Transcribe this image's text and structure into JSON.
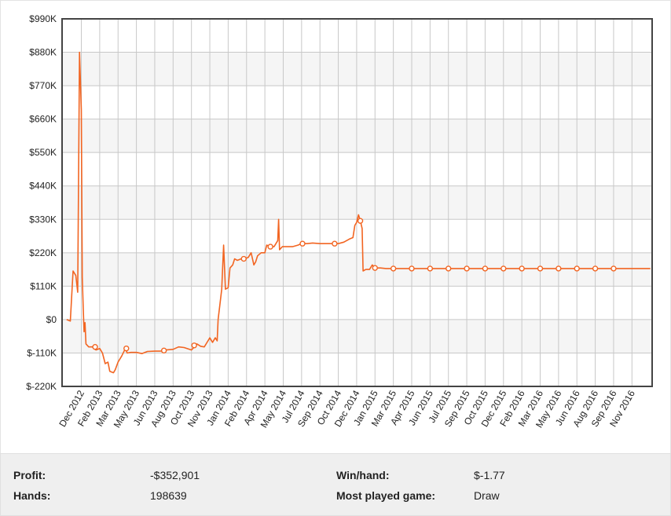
{
  "chart_data": {
    "type": "line",
    "title": "",
    "xlabel": "",
    "ylabel": "",
    "ylim": [
      -220000,
      990000
    ],
    "yticks": [
      -220000,
      -110000,
      0,
      110000,
      220000,
      330000,
      440000,
      550000,
      660000,
      770000,
      880000,
      990000
    ],
    "ytick_labels": [
      "$-220K",
      "$-110K",
      "$0",
      "$110K",
      "$220K",
      "$330K",
      "$440K",
      "$550K",
      "$660K",
      "$770K",
      "$880K",
      "$990K"
    ],
    "xtick_labels": [
      "Dec 2012",
      "Feb 2013",
      "Mar 2013",
      "May 2013",
      "Jun 2013",
      "Aug 2013",
      "Oct 2013",
      "Nov 2013",
      "Jan 2014",
      "Feb 2014",
      "Apr 2014",
      "May 2014",
      "Jul 2014",
      "Sep 2014",
      "Oct 2014",
      "Dec 2014",
      "Jan 2015",
      "Mar 2015",
      "Apr 2015",
      "Jun 2015",
      "Jul 2015",
      "Sep 2015",
      "Oct 2015",
      "Dec 2015",
      "Feb 2016",
      "Mar 2016",
      "May 2016",
      "Jun 2016",
      "Aug 2016",
      "Sep 2016",
      "Nov 2016"
    ],
    "grid": true,
    "legend": "none",
    "line_color": "#f26522",
    "series": [
      {
        "points": [
          [
            -0.8,
            0
          ],
          [
            -0.6,
            -5000
          ],
          [
            -0.45,
            160000
          ],
          [
            -0.3,
            145000
          ],
          [
            -0.2,
            90000
          ],
          [
            -0.1,
            880000
          ],
          [
            0.0,
            690000
          ],
          [
            0.05,
            140000
          ],
          [
            0.1,
            40000
          ],
          [
            0.15,
            -40000
          ],
          [
            0.2,
            -10000
          ],
          [
            0.25,
            -80000
          ],
          [
            0.4,
            -90000
          ],
          [
            0.6,
            -90000
          ],
          [
            0.8,
            -100000
          ],
          [
            1.0,
            -95000
          ],
          [
            1.15,
            -110000
          ],
          [
            1.3,
            -145000
          ],
          [
            1.45,
            -140000
          ],
          [
            1.55,
            -170000
          ],
          [
            1.75,
            -175000
          ],
          [
            1.85,
            -165000
          ],
          [
            2.0,
            -140000
          ],
          [
            2.2,
            -120000
          ],
          [
            2.4,
            -95000
          ],
          [
            2.5,
            -110000
          ],
          [
            2.7,
            -108000
          ],
          [
            3.0,
            -108000
          ],
          [
            3.3,
            -112000
          ],
          [
            3.6,
            -105000
          ],
          [
            4.0,
            -104000
          ],
          [
            4.3,
            -104000
          ],
          [
            4.6,
            -100000
          ],
          [
            5.0,
            -98000
          ],
          [
            5.3,
            -90000
          ],
          [
            5.6,
            -92000
          ],
          [
            6.0,
            -100000
          ],
          [
            6.3,
            -80000
          ],
          [
            6.5,
            -88000
          ],
          [
            6.7,
            -90000
          ],
          [
            6.9,
            -70000
          ],
          [
            7.0,
            -60000
          ],
          [
            7.15,
            -75000
          ],
          [
            7.3,
            -60000
          ],
          [
            7.4,
            -70000
          ],
          [
            7.45,
            0
          ],
          [
            7.55,
            50000
          ],
          [
            7.65,
            100000
          ],
          [
            7.75,
            245000
          ],
          [
            7.85,
            100000
          ],
          [
            8.0,
            105000
          ],
          [
            8.1,
            170000
          ],
          [
            8.25,
            180000
          ],
          [
            8.35,
            200000
          ],
          [
            8.5,
            195000
          ],
          [
            8.7,
            200000
          ],
          [
            8.9,
            200000
          ],
          [
            9.1,
            205000
          ],
          [
            9.25,
            220000
          ],
          [
            9.4,
            180000
          ],
          [
            9.5,
            190000
          ],
          [
            9.6,
            210000
          ],
          [
            9.8,
            220000
          ],
          [
            10.0,
            220000
          ],
          [
            10.1,
            245000
          ],
          [
            10.3,
            240000
          ],
          [
            10.5,
            240000
          ],
          [
            10.7,
            260000
          ],
          [
            10.75,
            330000
          ],
          [
            10.8,
            230000
          ],
          [
            10.95,
            240000
          ],
          [
            11.2,
            240000
          ],
          [
            11.5,
            240000
          ],
          [
            11.8,
            245000
          ],
          [
            12.0,
            250000
          ],
          [
            12.3,
            250000
          ],
          [
            12.6,
            252000
          ],
          [
            13.0,
            250000
          ],
          [
            13.3,
            250000
          ],
          [
            13.6,
            250000
          ],
          [
            14.0,
            250000
          ],
          [
            14.3,
            255000
          ],
          [
            14.6,
            265000
          ],
          [
            14.8,
            270000
          ],
          [
            14.9,
            310000
          ],
          [
            15.0,
            320000
          ],
          [
            15.1,
            345000
          ],
          [
            15.2,
            325000
          ],
          [
            15.3,
            300000
          ],
          [
            15.35,
            160000
          ],
          [
            15.5,
            165000
          ],
          [
            15.7,
            165000
          ],
          [
            15.85,
            180000
          ],
          [
            16.0,
            170000
          ],
          [
            16.3,
            170000
          ],
          [
            16.6,
            168000
          ],
          [
            17.0,
            168000
          ],
          [
            18.0,
            168000
          ],
          [
            19.0,
            168000
          ],
          [
            20.0,
            168000
          ],
          [
            21.0,
            168000
          ],
          [
            22.0,
            168000
          ],
          [
            23.0,
            168000
          ],
          [
            24.0,
            168000
          ],
          [
            25.0,
            168000
          ],
          [
            26.0,
            168000
          ],
          [
            27.0,
            168000
          ],
          [
            28.0,
            168000
          ],
          [
            29.0,
            168000
          ],
          [
            30.0,
            168000
          ],
          [
            31.0,
            168000
          ]
        ],
        "markers": [
          [
            0.75,
            -90000
          ],
          [
            2.45,
            -95000
          ],
          [
            4.5,
            -102000
          ],
          [
            6.15,
            -85000
          ],
          [
            8.85,
            200000
          ],
          [
            10.3,
            240000
          ],
          [
            12.05,
            250000
          ],
          [
            13.8,
            250000
          ],
          [
            15.2,
            325000
          ],
          [
            16.0,
            170000
          ],
          [
            17.0,
            168000
          ],
          [
            18.0,
            168000
          ],
          [
            19.0,
            168000
          ],
          [
            20.0,
            168000
          ],
          [
            21.0,
            168000
          ],
          [
            22.0,
            168000
          ],
          [
            23.0,
            168000
          ],
          [
            24.0,
            168000
          ],
          [
            25.0,
            168000
          ],
          [
            26.0,
            168000
          ],
          [
            27.0,
            168000
          ],
          [
            28.0,
            168000
          ],
          [
            29.0,
            168000
          ]
        ]
      }
    ]
  },
  "stats": {
    "profit_label": "Profit:",
    "profit_value": "-$352,901",
    "hands_label": "Hands:",
    "hands_value": "198639",
    "winhand_label": "Win/hand:",
    "winhand_value": "$-1.77",
    "game_label": "Most played game:",
    "game_value": "Draw"
  }
}
